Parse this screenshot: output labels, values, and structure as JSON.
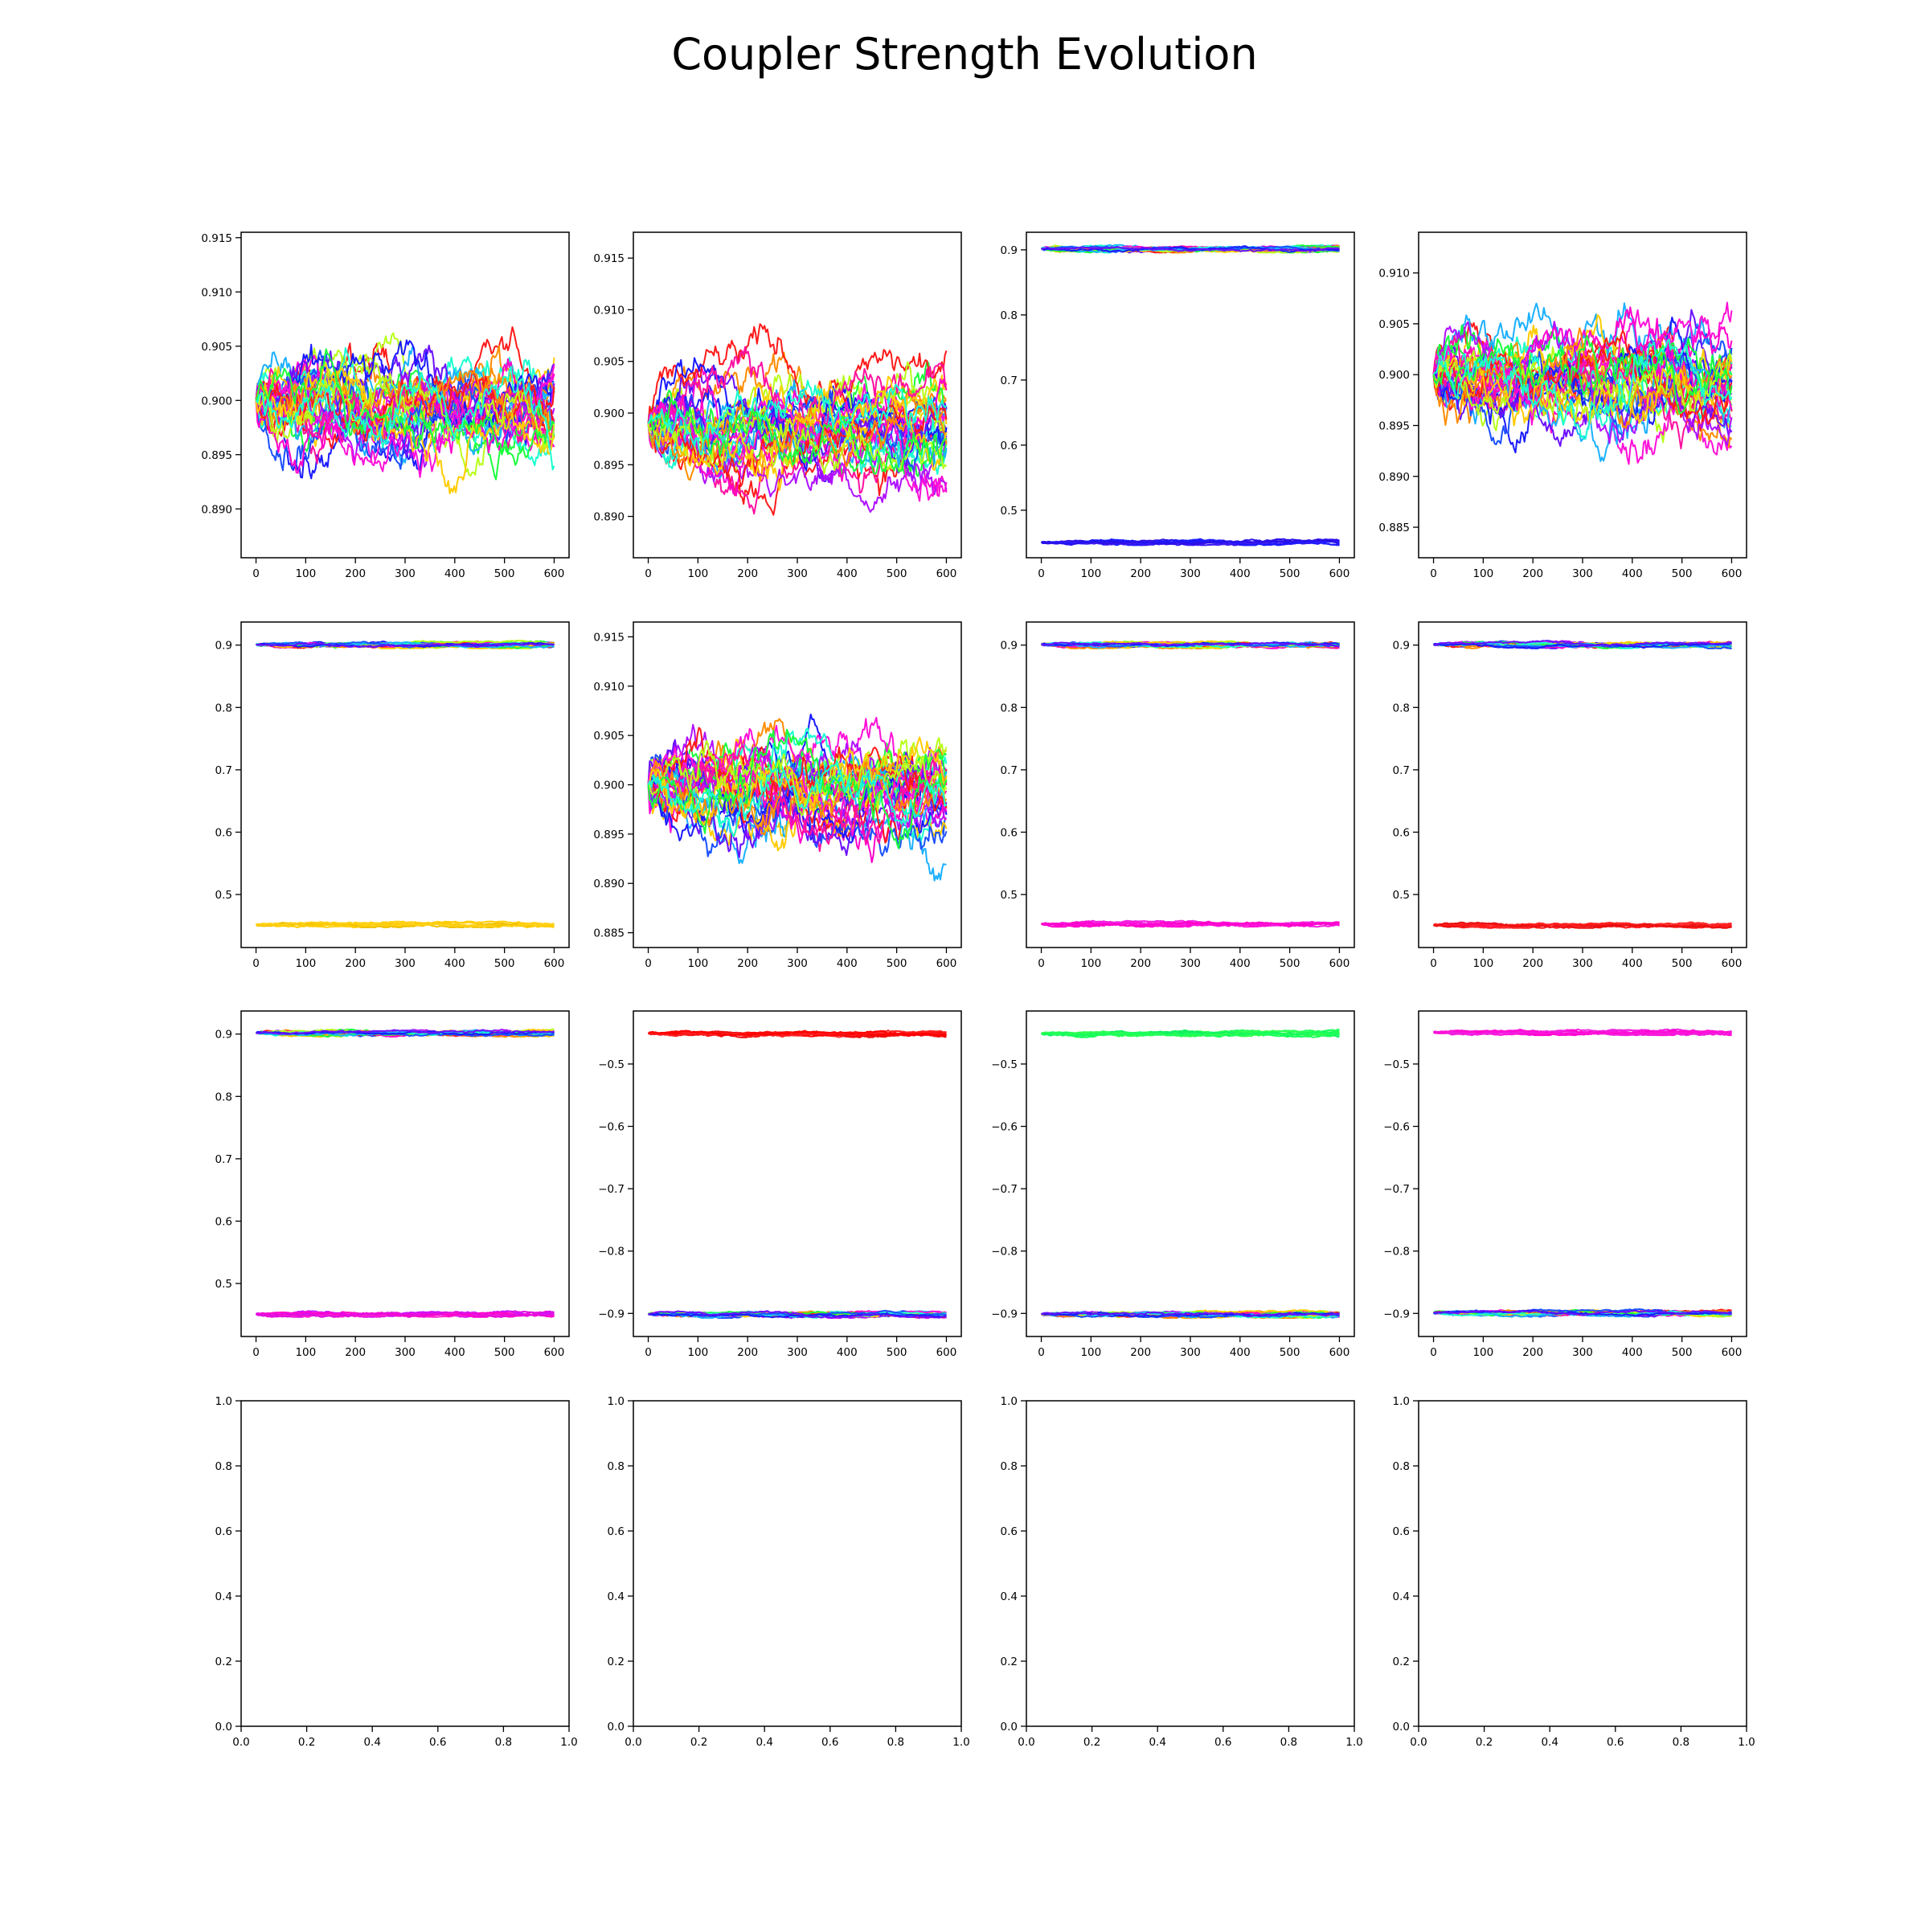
{
  "figure": {
    "title": "Coupler Strength Evolution"
  },
  "chart_data": [
    {
      "type": "line",
      "panel": "r1c1",
      "xlim": [
        -30,
        630
      ],
      "ylim": [
        0.8855,
        0.9155
      ],
      "xticks": [
        0,
        100,
        200,
        300,
        400,
        500,
        600
      ],
      "yticks": [
        0.89,
        0.895,
        0.9,
        0.905,
        0.91,
        0.915
      ],
      "ytick_decimals": 3,
      "steps": 600,
      "bands": [
        {
          "center": 0.9,
          "spread": 0.0075,
          "noise": 0.0012,
          "lines": 34,
          "colors": "rainbow"
        }
      ]
    },
    {
      "type": "line",
      "panel": "r1c2",
      "xlim": [
        -30,
        630
      ],
      "ylim": [
        0.886,
        0.9175
      ],
      "xticks": [
        0,
        100,
        200,
        300,
        400,
        500,
        600
      ],
      "yticks": [
        0.89,
        0.895,
        0.9,
        0.905,
        0.91,
        0.915
      ],
      "ytick_decimals": 3,
      "steps": 600,
      "bands": [
        {
          "center": 0.899,
          "spread": 0.0075,
          "noise": 0.0012,
          "lines": 34,
          "colors": "rainbow"
        }
      ]
    },
    {
      "type": "line",
      "panel": "r1c3",
      "xlim": [
        -30,
        630
      ],
      "ylim": [
        0.427,
        0.927
      ],
      "xticks": [
        0,
        100,
        200,
        300,
        400,
        500,
        600
      ],
      "yticks": [
        0.5,
        0.6,
        0.7,
        0.8,
        0.9
      ],
      "ytick_decimals": 1,
      "steps": 600,
      "bands": [
        {
          "center": 0.902,
          "spread": 0.004,
          "noise": 0.0012,
          "lines": 24,
          "colors": "rainbow"
        },
        {
          "center": 0.451,
          "spread": 0.003,
          "noise": 0.0012,
          "lines": 8,
          "colors": [
            "#1a1aff",
            "#2a10e8",
            "#3d1af0"
          ]
        }
      ]
    },
    {
      "type": "line",
      "panel": "r1c4",
      "xlim": [
        -30,
        630
      ],
      "ylim": [
        0.882,
        0.914
      ],
      "xticks": [
        0,
        100,
        200,
        300,
        400,
        500,
        600
      ],
      "yticks": [
        0.885,
        0.89,
        0.895,
        0.9,
        0.905,
        0.91
      ],
      "ytick_decimals": 3,
      "steps": 600,
      "bands": [
        {
          "center": 0.9,
          "spread": 0.0075,
          "noise": 0.0013,
          "lines": 34,
          "colors": "rainbow"
        }
      ]
    },
    {
      "type": "line",
      "panel": "r2c1",
      "xlim": [
        -30,
        630
      ],
      "ylim": [
        0.415,
        0.937
      ],
      "xticks": [
        0,
        100,
        200,
        300,
        400,
        500,
        600
      ],
      "yticks": [
        0.5,
        0.6,
        0.7,
        0.8,
        0.9
      ],
      "ytick_decimals": 1,
      "steps": 600,
      "bands": [
        {
          "center": 0.901,
          "spread": 0.004,
          "noise": 0.0012,
          "lines": 24,
          "colors": "rainbow"
        },
        {
          "center": 0.452,
          "spread": 0.003,
          "noise": 0.0012,
          "lines": 8,
          "colors": [
            "#ffcc00",
            "#ffd21a",
            "#f0c000"
          ]
        }
      ]
    },
    {
      "type": "line",
      "panel": "r2c2",
      "xlim": [
        -30,
        630
      ],
      "ylim": [
        0.8835,
        0.9165
      ],
      "xticks": [
        0,
        100,
        200,
        300,
        400,
        500,
        600
      ],
      "yticks": [
        0.885,
        0.89,
        0.895,
        0.9,
        0.905,
        0.91,
        0.915
      ],
      "ytick_decimals": 3,
      "steps": 600,
      "bands": [
        {
          "center": 0.9,
          "spread": 0.0075,
          "noise": 0.0013,
          "lines": 34,
          "colors": "rainbow"
        }
      ]
    },
    {
      "type": "line",
      "panel": "r2c3",
      "xlim": [
        -30,
        630
      ],
      "ylim": [
        0.415,
        0.937
      ],
      "xticks": [
        0,
        100,
        200,
        300,
        400,
        500,
        600
      ],
      "yticks": [
        0.5,
        0.6,
        0.7,
        0.8,
        0.9
      ],
      "ytick_decimals": 1,
      "steps": 600,
      "bands": [
        {
          "center": 0.901,
          "spread": 0.004,
          "noise": 0.0012,
          "lines": 24,
          "colors": "rainbow"
        },
        {
          "center": 0.453,
          "spread": 0.003,
          "noise": 0.0012,
          "lines": 8,
          "colors": [
            "#ff10d8",
            "#ff00cc",
            "#f020e0"
          ]
        }
      ]
    },
    {
      "type": "line",
      "panel": "r2c4",
      "xlim": [
        -30,
        630
      ],
      "ylim": [
        0.415,
        0.937
      ],
      "xticks": [
        0,
        100,
        200,
        300,
        400,
        500,
        600
      ],
      "yticks": [
        0.5,
        0.6,
        0.7,
        0.8,
        0.9
      ],
      "ytick_decimals": 1,
      "steps": 600,
      "bands": [
        {
          "center": 0.901,
          "spread": 0.004,
          "noise": 0.0012,
          "lines": 24,
          "colors": "rainbow"
        },
        {
          "center": 0.451,
          "spread": 0.003,
          "noise": 0.0012,
          "lines": 8,
          "colors": [
            "#ff1a1a",
            "#e81010",
            "#ff2a2a"
          ]
        }
      ]
    },
    {
      "type": "line",
      "panel": "r3c1",
      "xlim": [
        -30,
        630
      ],
      "ylim": [
        0.415,
        0.937
      ],
      "xticks": [
        0,
        100,
        200,
        300,
        400,
        500,
        600
      ],
      "yticks": [
        0.5,
        0.6,
        0.7,
        0.8,
        0.9
      ],
      "ytick_decimals": 1,
      "steps": 600,
      "bands": [
        {
          "center": 0.902,
          "spread": 0.004,
          "noise": 0.0012,
          "lines": 24,
          "colors": "rainbow"
        },
        {
          "center": 0.451,
          "spread": 0.003,
          "noise": 0.0012,
          "lines": 10,
          "colors": [
            "#ff00cc",
            "#e010e0",
            "#cc10ff",
            "#ff20d0"
          ]
        }
      ]
    },
    {
      "type": "line",
      "panel": "r3c2",
      "xlim": [
        -30,
        630
      ],
      "ylim": [
        -0.937,
        -0.415
      ],
      "xticks": [
        0,
        100,
        200,
        300,
        400,
        500,
        600
      ],
      "yticks": [
        -0.9,
        -0.8,
        -0.7,
        -0.6,
        -0.5
      ],
      "ytick_decimals": 1,
      "steps": 600,
      "bands": [
        {
          "center": -0.451,
          "spread": 0.004,
          "noise": 0.0012,
          "lines": 10,
          "colors": [
            "#ff0000",
            "#ee1010",
            "#ff2020"
          ]
        },
        {
          "center": -0.901,
          "spread": 0.004,
          "noise": 0.0012,
          "lines": 24,
          "colors": "rainbow"
        }
      ]
    },
    {
      "type": "line",
      "panel": "r3c3",
      "xlim": [
        -30,
        630
      ],
      "ylim": [
        -0.937,
        -0.415
      ],
      "xticks": [
        0,
        100,
        200,
        300,
        400,
        500,
        600
      ],
      "yticks": [
        -0.9,
        -0.8,
        -0.7,
        -0.6,
        -0.5
      ],
      "ytick_decimals": 1,
      "steps": 600,
      "bands": [
        {
          "center": -0.451,
          "spread": 0.004,
          "noise": 0.0012,
          "lines": 10,
          "colors": [
            "#1aff5a",
            "#10f060",
            "#30ff50"
          ]
        },
        {
          "center": -0.901,
          "spread": 0.004,
          "noise": 0.0012,
          "lines": 24,
          "colors": "rainbow"
        }
      ]
    },
    {
      "type": "line",
      "panel": "r3c4",
      "xlim": [
        -30,
        630
      ],
      "ylim": [
        -0.937,
        -0.415
      ],
      "xticks": [
        0,
        100,
        200,
        300,
        400,
        500,
        600
      ],
      "yticks": [
        -0.9,
        -0.8,
        -0.7,
        -0.6,
        -0.5
      ],
      "ytick_decimals": 1,
      "steps": 600,
      "bands": [
        {
          "center": -0.449,
          "spread": 0.003,
          "noise": 0.0012,
          "lines": 10,
          "colors": [
            "#ff10d8",
            "#ff00cc",
            "#f020e0"
          ]
        },
        {
          "center": -0.899,
          "spread": 0.004,
          "noise": 0.0012,
          "lines": 24,
          "colors": "rainbow"
        }
      ]
    },
    {
      "type": "line",
      "panel": "r4c1",
      "xlim": [
        0,
        1
      ],
      "ylim": [
        0,
        1
      ],
      "xticks": [
        0,
        0.2,
        0.4,
        0.6,
        0.8,
        1.0
      ],
      "yticks": [
        0,
        0.2,
        0.4,
        0.6,
        0.8,
        1.0
      ],
      "xtick_decimals": 1,
      "ytick_decimals": 1,
      "bands": []
    },
    {
      "type": "line",
      "panel": "r4c2",
      "xlim": [
        0,
        1
      ],
      "ylim": [
        0,
        1
      ],
      "xticks": [
        0,
        0.2,
        0.4,
        0.6,
        0.8,
        1.0
      ],
      "yticks": [
        0,
        0.2,
        0.4,
        0.6,
        0.8,
        1.0
      ],
      "xtick_decimals": 1,
      "ytick_decimals": 1,
      "bands": []
    },
    {
      "type": "line",
      "panel": "r4c3",
      "xlim": [
        0,
        1
      ],
      "ylim": [
        0,
        1
      ],
      "xticks": [
        0,
        0.2,
        0.4,
        0.6,
        0.8,
        1.0
      ],
      "yticks": [
        0,
        0.2,
        0.4,
        0.6,
        0.8,
        1.0
      ],
      "xtick_decimals": 1,
      "ytick_decimals": 1,
      "bands": []
    },
    {
      "type": "line",
      "panel": "r4c4",
      "xlim": [
        0,
        1
      ],
      "ylim": [
        0,
        1
      ],
      "xticks": [
        0,
        0.2,
        0.4,
        0.6,
        0.8,
        1.0
      ],
      "yticks": [
        0,
        0.2,
        0.4,
        0.6,
        0.8,
        1.0
      ],
      "xtick_decimals": 1,
      "ytick_decimals": 1,
      "bands": []
    }
  ],
  "colors": {
    "rainbow": [
      "#ff1a1a",
      "#ff8c00",
      "#ffcc00",
      "#b8ff1a",
      "#1aff3c",
      "#1affd0",
      "#1ab0ff",
      "#1a50ff",
      "#1a1aff",
      "#6a10ff",
      "#b010ff",
      "#ff10d8",
      "#ff00cc",
      "#ff10a0"
    ],
    "axis": "#000000",
    "background": "#ffffff"
  }
}
